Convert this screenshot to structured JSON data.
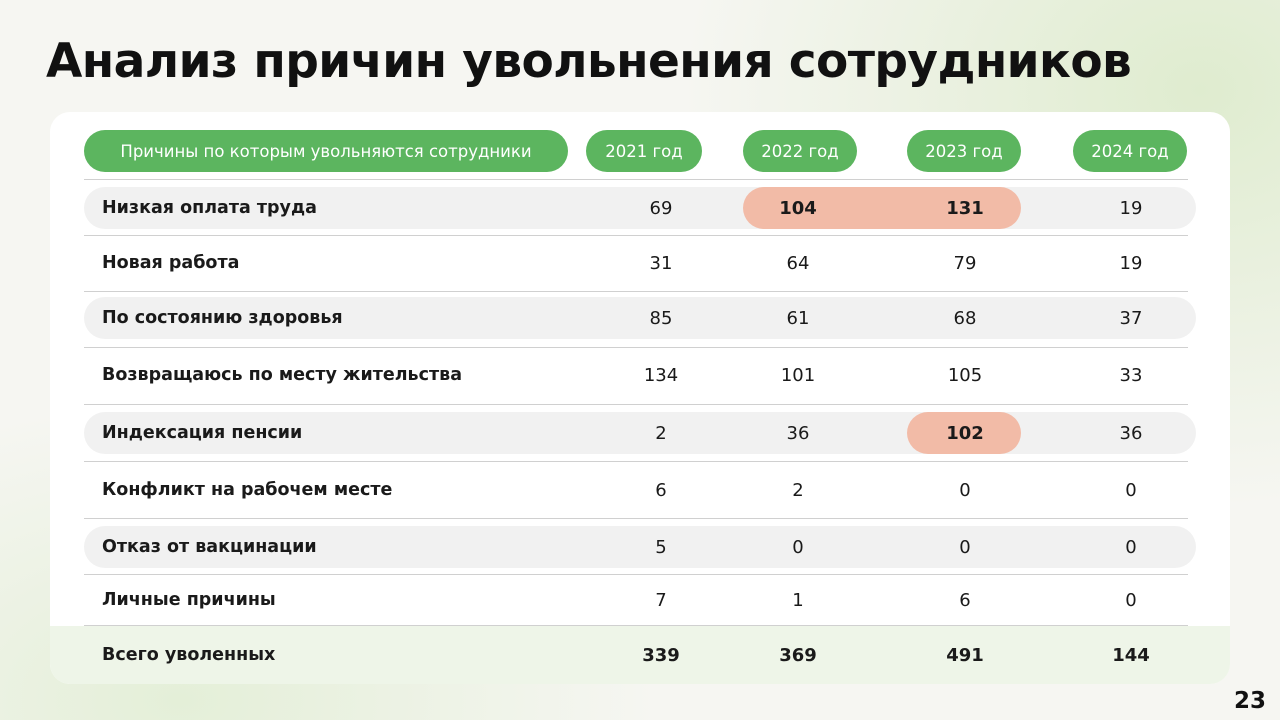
{
  "title": "Анализ причин увольнения сотрудников",
  "header": {
    "reason": "Причины по которым увольняются сотрудники",
    "years": [
      "2021 год",
      "2022 год",
      "2023 год",
      "2024 год"
    ]
  },
  "rows": [
    {
      "label": "Низкая оплата труда",
      "values": [
        "69",
        "104",
        "131",
        "19"
      ]
    },
    {
      "label": "Новая работа",
      "values": [
        "31",
        "64",
        "79",
        "19"
      ]
    },
    {
      "label": "По состоянию здоровья",
      "values": [
        "85",
        "61",
        "68",
        "37"
      ]
    },
    {
      "label": "Возвращаюсь по месту жительства",
      "values": [
        "134",
        "101",
        "105",
        "33"
      ]
    },
    {
      "label": "Индексация пенсии",
      "values": [
        "2",
        "36",
        "102",
        "36"
      ]
    },
    {
      "label": "Конфликт на рабочем месте",
      "values": [
        "6",
        "2",
        "0",
        "0"
      ]
    },
    {
      "label": "Отказ от вакцинации",
      "values": [
        "5",
        "0",
        "0",
        "0"
      ]
    },
    {
      "label": "Личные причины",
      "values": [
        "7",
        "1",
        "6",
        "0"
      ]
    }
  ],
  "total": {
    "label": "Всего уволенных",
    "values": [
      "339",
      "369",
      "491",
      "144"
    ]
  },
  "page_number": "23",
  "colors": {
    "header_green": "#5cb55f",
    "highlight": "#f2bba7",
    "shaded_row": "#f1f1f1",
    "total_row": "#eef5e8"
  }
}
